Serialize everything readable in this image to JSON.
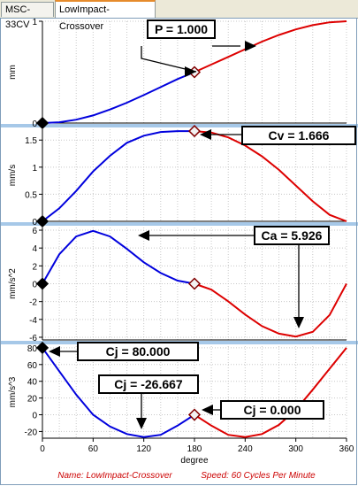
{
  "tabs": [
    {
      "label": "MSC-33CV"
    },
    {
      "label": "LowImpact-Crossover"
    }
  ],
  "colors": {
    "rise_curve": "#0000dd",
    "fall_curve": "#dd0000",
    "separator": "#a6c8e8",
    "grid": "#c8c8c8",
    "footer_text": "#cc0000"
  },
  "footer": {
    "name": "Name: LowImpact-Crossover",
    "speed": "Speed: 60 Cycles Per Minute"
  },
  "chart_data": [
    {
      "type": "line",
      "id": "position",
      "ylabel": "mm",
      "ylim": [
        0,
        1
      ],
      "yticks": [
        0,
        1
      ],
      "ytick_labels": [
        "0",
        "1"
      ],
      "xlim": [
        0,
        360
      ],
      "segments": [
        {
          "x": [
            0,
            20,
            40,
            60,
            80,
            100,
            120,
            140,
            160,
            180
          ],
          "y": [
            0,
            0.008,
            0.033,
            0.075,
            0.133,
            0.2,
            0.275,
            0.353,
            0.432,
            0.5
          ]
        },
        {
          "x": [
            180,
            200,
            220,
            240,
            260,
            280,
            300,
            320,
            340,
            360
          ],
          "y": [
            0.5,
            0.575,
            0.65,
            0.725,
            0.8,
            0.865,
            0.92,
            0.962,
            0.99,
            1.0
          ]
        }
      ],
      "markers": [
        {
          "x": 0,
          "y": 0
        },
        {
          "x": 180,
          "y": 0.5
        }
      ],
      "annotation": {
        "text": "P = 1.000"
      }
    },
    {
      "type": "line",
      "id": "velocity",
      "ylabel": "mm/s",
      "ylim": [
        0,
        1.7
      ],
      "yticks": [
        0,
        0.5,
        1,
        1.5
      ],
      "ytick_labels": [
        "0",
        "0.5",
        "1",
        "1.5"
      ],
      "xlim": [
        0,
        360
      ],
      "segments": [
        {
          "x": [
            0,
            20,
            40,
            60,
            80,
            100,
            120,
            140,
            160,
            180
          ],
          "y": [
            0,
            0.24,
            0.56,
            0.92,
            1.21,
            1.45,
            1.58,
            1.65,
            1.666,
            1.666
          ]
        },
        {
          "x": [
            180,
            200,
            220,
            240,
            260,
            280,
            300,
            320,
            340,
            360
          ],
          "y": [
            1.666,
            1.64,
            1.55,
            1.4,
            1.2,
            0.95,
            0.66,
            0.37,
            0.12,
            0
          ]
        }
      ],
      "markers": [
        {
          "x": 0,
          "y": 0
        },
        {
          "x": 180,
          "y": 1.666
        }
      ],
      "annotation": {
        "text": "Cv = 1.666"
      }
    },
    {
      "type": "line",
      "id": "acceleration",
      "ylabel": "mm/s^2",
      "ylim": [
        -6.3,
        6.3
      ],
      "yticks": [
        -6,
        -4,
        -2,
        0,
        2,
        4,
        6
      ],
      "ytick_labels": [
        "-6",
        "-4",
        "-2",
        "0",
        "2",
        "4",
        "6"
      ],
      "xlim": [
        0,
        360
      ],
      "segments": [
        {
          "x": [
            0,
            20,
            40,
            60,
            80,
            100,
            120,
            140,
            160,
            180
          ],
          "y": [
            0,
            3.3,
            5.3,
            5.926,
            5.3,
            3.9,
            2.4,
            1.2,
            0.35,
            0
          ]
        },
        {
          "x": [
            180,
            200,
            220,
            240,
            260,
            280,
            300,
            320,
            340,
            360
          ],
          "y": [
            0,
            -0.66,
            -1.97,
            -3.45,
            -4.75,
            -5.6,
            -5.926,
            -5.4,
            -3.5,
            0
          ]
        }
      ],
      "markers": [
        {
          "x": 0,
          "y": 0
        },
        {
          "x": 180,
          "y": 0
        }
      ],
      "annotation": {
        "text": "Ca = 5.926"
      }
    },
    {
      "type": "line",
      "id": "jerk",
      "ylabel": "mm/s^3",
      "ylim": [
        -28,
        82
      ],
      "yticks": [
        -20,
        0,
        20,
        40,
        60,
        80
      ],
      "ytick_labels": [
        "-20",
        "0",
        "20",
        "40",
        "60",
        "80"
      ],
      "xlim": [
        0,
        360
      ],
      "xlabel": "degree",
      "xticks": [
        0,
        60,
        120,
        180,
        240,
        300,
        360
      ],
      "segments": [
        {
          "x": [
            0,
            20,
            40,
            60,
            80,
            100,
            120,
            140,
            160,
            180
          ],
          "y": [
            80,
            52,
            24,
            0,
            -14,
            -23,
            -26.667,
            -24,
            -13,
            0
          ]
        },
        {
          "x": [
            180,
            200,
            220,
            240,
            260,
            280,
            300,
            320,
            340,
            360
          ],
          "y": [
            0,
            -13,
            -24,
            -26.667,
            -23,
            -12,
            6,
            30,
            55,
            80
          ]
        }
      ],
      "markers": [
        {
          "x": 0,
          "y": 80
        },
        {
          "x": 180,
          "y": 0
        }
      ],
      "annotations": [
        {
          "text": "Cj = 80.000"
        },
        {
          "text": "Cj = -26.667"
        },
        {
          "text": "Cj = 0.000"
        }
      ]
    }
  ]
}
